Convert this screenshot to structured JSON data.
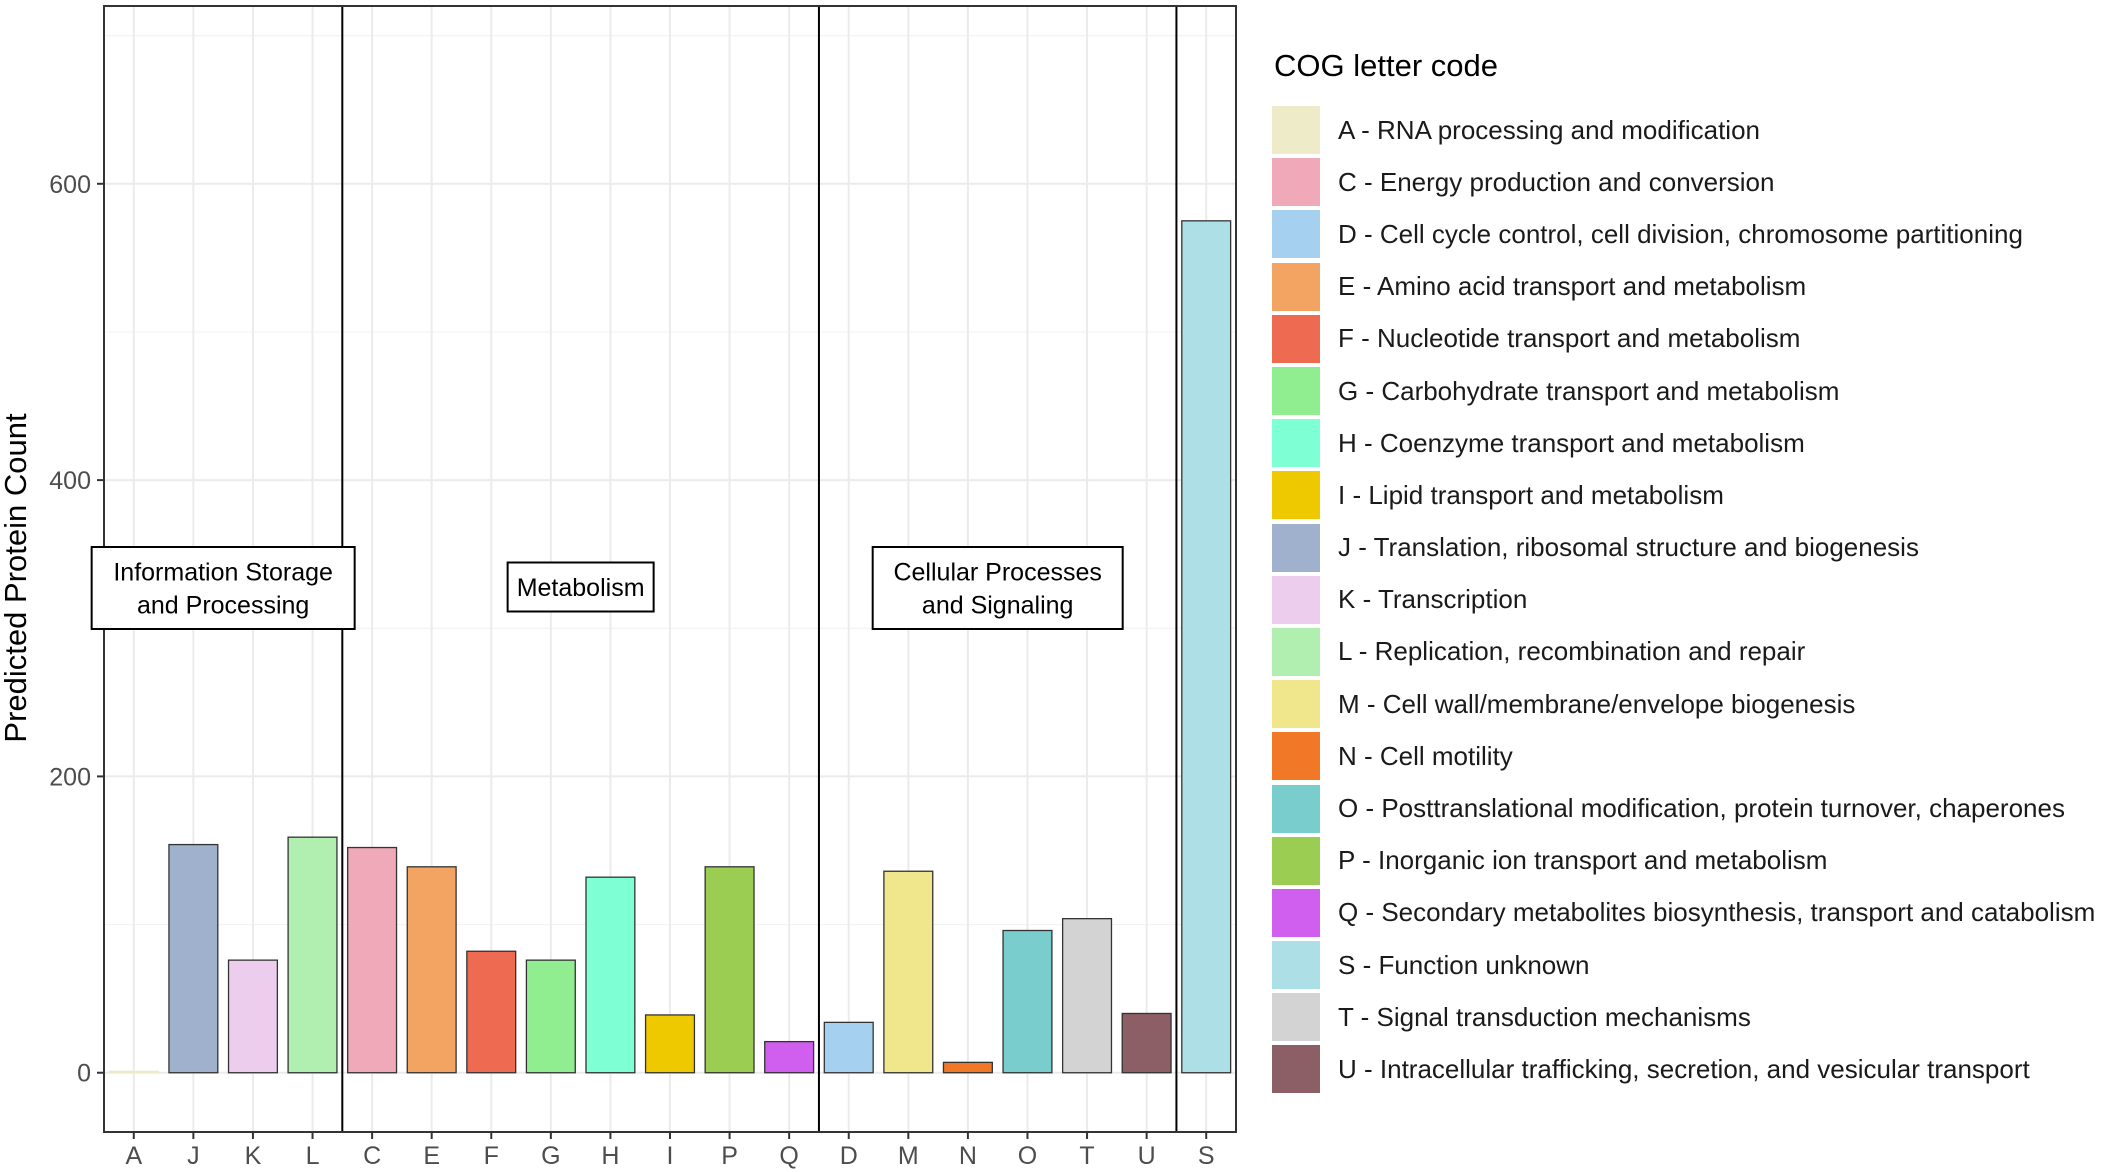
{
  "chart_data": {
    "type": "bar",
    "ylabel": "Predicted Protein Count",
    "xlabel": "",
    "ylim": [
      -40,
      720
    ],
    "yticks": [
      0,
      200,
      400,
      600
    ],
    "grid": true,
    "legend_position": "right",
    "legend_title": "COG letter code",
    "categories": [
      "A",
      "J",
      "K",
      "L",
      "C",
      "E",
      "F",
      "G",
      "H",
      "I",
      "P",
      "Q",
      "D",
      "M",
      "N",
      "O",
      "T",
      "U",
      "S"
    ],
    "values": [
      1,
      154,
      76,
      159,
      152,
      139,
      82,
      76,
      132,
      39,
      139,
      21,
      34,
      136,
      7,
      96,
      104,
      40,
      575
    ],
    "colors": [
      "#EEEBC8",
      "#A0B1CE",
      "#ECCDEE",
      "#B1EFB1",
      "#F0A9B8",
      "#F4A462",
      "#EE6A50",
      "#90EE90",
      "#7FFFD4",
      "#EEC900",
      "#9ACD52",
      "#D05EEE",
      "#A5D0F0",
      "#F0E68C",
      "#F07826",
      "#79CDCD",
      "#D3D3D3",
      "#8B5F65",
      "#ADDFE6"
    ],
    "groups": [
      {
        "label_lines": [
          "Information Storage",
          "and Processing"
        ],
        "categories": [
          "A",
          "J",
          "K",
          "L"
        ]
      },
      {
        "label_lines": [
          "Metabolism"
        ],
        "categories": [
          "C",
          "E",
          "F",
          "G",
          "H",
          "I",
          "P",
          "Q"
        ]
      },
      {
        "label_lines": [
          "Cellular Processes",
          "and Signaling"
        ],
        "categories": [
          "D",
          "M",
          "N",
          "O",
          "T",
          "U"
        ]
      },
      {
        "label_lines": [],
        "categories": [
          "S"
        ]
      }
    ]
  },
  "legend": {
    "title": "COG letter code",
    "items": [
      {
        "label": "A - RNA processing and modification",
        "color": "#EEEBC8"
      },
      {
        "label": "C - Energy production and conversion",
        "color": "#F0A9B8"
      },
      {
        "label": "D - Cell cycle control, cell division, chromosome partitioning",
        "color": "#A5D0F0"
      },
      {
        "label": "E - Amino acid transport and metabolism",
        "color": "#F4A462"
      },
      {
        "label": "F - Nucleotide transport and metabolism",
        "color": "#EE6A50"
      },
      {
        "label": "G - Carbohydrate transport and metabolism",
        "color": "#90EE90"
      },
      {
        "label": "H - Coenzyme transport and metabolism",
        "color": "#7FFFD4"
      },
      {
        "label": "I - Lipid transport and metabolism",
        "color": "#EEC900"
      },
      {
        "label": "J - Translation, ribosomal structure and biogenesis",
        "color": "#A0B1CE"
      },
      {
        "label": "K - Transcription",
        "color": "#ECCDEE"
      },
      {
        "label": "L - Replication, recombination and repair",
        "color": "#B1EFB1"
      },
      {
        "label": "M - Cell wall/membrane/envelope biogenesis",
        "color": "#F0E68C"
      },
      {
        "label": "N - Cell motility",
        "color": "#F07826"
      },
      {
        "label": "O - Posttranslational modification, protein turnover, chaperones",
        "color": "#79CDCD"
      },
      {
        "label": "P - Inorganic ion transport and metabolism",
        "color": "#9ACD52"
      },
      {
        "label": "Q - Secondary metabolites biosynthesis, transport and catabolism",
        "color": "#D05EEE"
      },
      {
        "label": "S - Function unknown",
        "color": "#ADDFE6"
      },
      {
        "label": "T - Signal transduction mechanisms",
        "color": "#D3D3D3"
      },
      {
        "label": "U - Intracellular trafficking, secretion, and vesicular transport",
        "color": "#8B5F65"
      }
    ]
  }
}
